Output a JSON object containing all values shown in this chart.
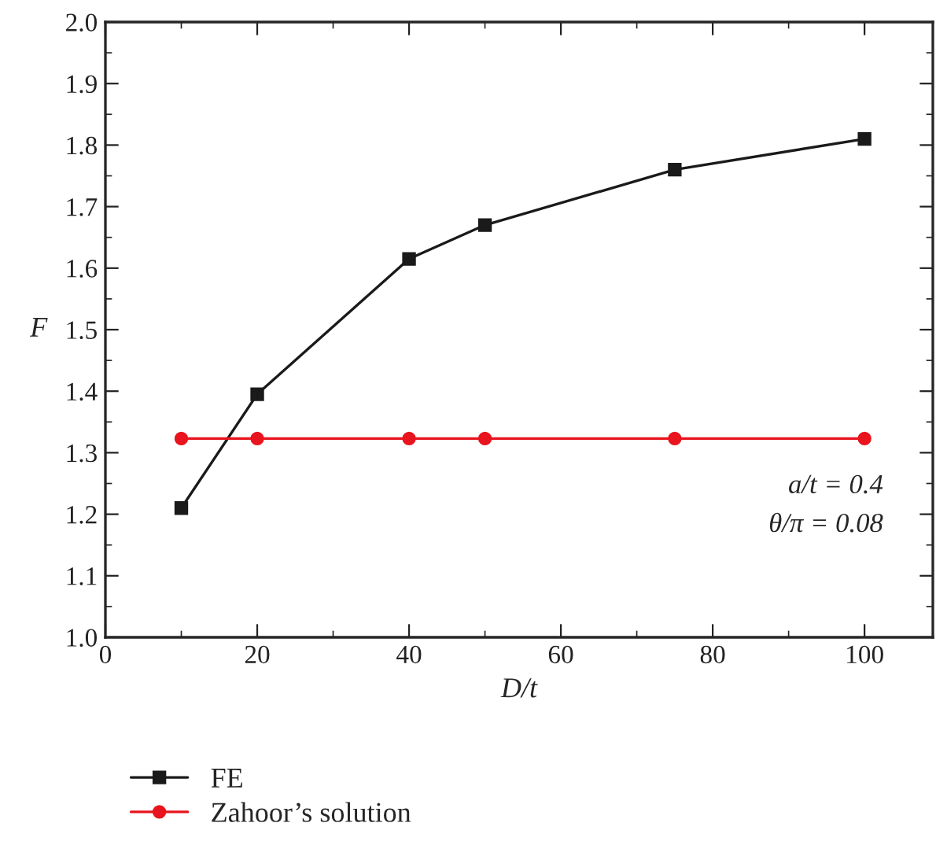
{
  "chart_data": {
    "type": "line",
    "xlabel": "D/t",
    "ylabel": "F",
    "x": [
      10,
      20,
      40,
      50,
      75,
      100
    ],
    "series": [
      {
        "name": "FE",
        "color": "#1a1a1a",
        "marker": "square",
        "values": [
          1.21,
          1.395,
          1.615,
          1.67,
          1.76,
          1.81
        ]
      },
      {
        "name": "Zahoor’s solution",
        "color": "#e8141e",
        "marker": "circle",
        "values": [
          1.323,
          1.323,
          1.323,
          1.323,
          1.323,
          1.323
        ]
      }
    ],
    "xlim": [
      0,
      109
    ],
    "xticks": [
      0,
      20,
      40,
      60,
      80,
      100
    ],
    "ylim": [
      1.0,
      2.0
    ],
    "yticks": [
      {
        "value": 1,
        "label": "1.0"
      },
      1.1,
      1.2,
      1.3,
      1.4,
      1.5,
      1.6,
      1.7,
      1.8,
      1.9,
      {
        "value": 2,
        "label": "2.0"
      }
    ],
    "annotations": [
      "a/t = 0.4",
      "θ/π = 0.08"
    ],
    "legend": "bottom",
    "grid": false,
    "line_style": "solid"
  }
}
